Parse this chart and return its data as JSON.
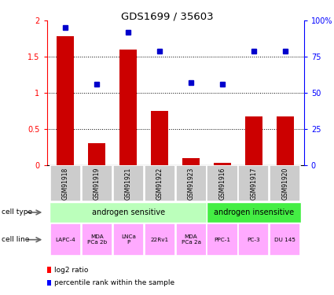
{
  "title": "GDS1699 / 35603",
  "samples": [
    "GSM91918",
    "GSM91919",
    "GSM91921",
    "GSM91922",
    "GSM91923",
    "GSM91916",
    "GSM91917",
    "GSM91920"
  ],
  "log2_ratio": [
    1.78,
    0.3,
    1.6,
    0.75,
    0.1,
    0.03,
    0.68,
    0.68
  ],
  "percentile_rank": [
    95,
    56,
    92,
    79,
    57,
    56,
    79,
    79
  ],
  "bar_color": "#cc0000",
  "dot_color": "#0000cc",
  "ylim_left": [
    0,
    2
  ],
  "ylim_right": [
    0,
    100
  ],
  "yticks_left": [
    0,
    0.5,
    1.0,
    1.5,
    2.0
  ],
  "yticks_right": [
    0,
    25,
    50,
    75,
    100
  ],
  "ytick_labels_left": [
    "0",
    "0.5",
    "1",
    "1.5",
    "2"
  ],
  "ytick_labels_right": [
    "0",
    "25",
    "50",
    "75",
    "100%"
  ],
  "cell_type_groups": [
    {
      "label": "androgen sensitive",
      "start": 0,
      "end": 5,
      "color": "#bbffbb"
    },
    {
      "label": "androgen insensitive",
      "start": 5,
      "end": 8,
      "color": "#44ee44"
    }
  ],
  "cell_lines": [
    "LAPC-4",
    "MDA\nPCa 2b",
    "LNCa\nP",
    "22Rv1",
    "MDA\nPCa 2a",
    "PPC-1",
    "PC-3",
    "DU 145"
  ],
  "cell_line_color": "#ffaaff",
  "gsm_bg_color": "#cccccc",
  "legend_red_label": "log2 ratio",
  "legend_blue_label": "percentile rank within the sample"
}
